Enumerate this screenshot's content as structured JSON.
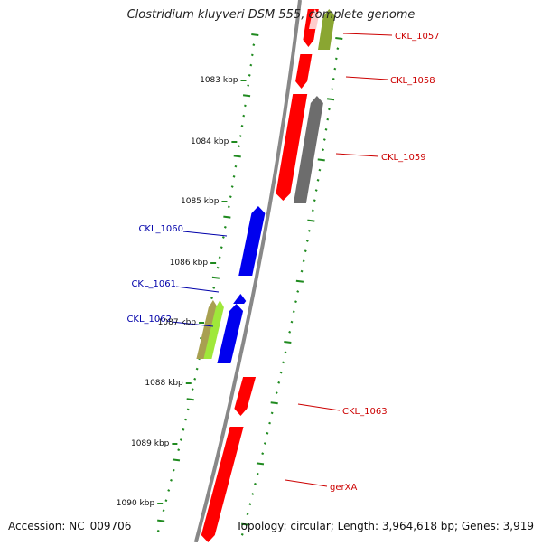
{
  "title": "Clostridium kluyveri DSM 555, complete genome",
  "accession": "Accession: NC_009706",
  "topology": "Topology: circular; Length: 3,964,618 bp; Genes: 3,919",
  "scale_labels": [
    "1083 kbp",
    "1084 kbp",
    "1085 kbp",
    "1086 kbp",
    "1087 kbp",
    "1088 kbp",
    "1089 kbp",
    "1090 kbp"
  ],
  "forward_genes": [
    {
      "label": "CKL_1057",
      "color": "#ff0000"
    },
    {
      "label": "CKL_1058",
      "color": "#ff0000"
    },
    {
      "label": "CKL_1059",
      "color": "#ff0000"
    },
    {
      "label": "CKL_1063",
      "color": "#ff0000"
    },
    {
      "label": "gerXA",
      "color": "#ff0000"
    }
  ],
  "reverse_genes": [
    {
      "label": "CKL_1060",
      "color": "#0000ee"
    },
    {
      "label": "CKL_1061",
      "color": "#0000ee"
    },
    {
      "label": "CKL_1062",
      "color": "#0000ee"
    }
  ],
  "colors": {
    "forward": "#ff0000",
    "reverse": "#0000ee",
    "backbone": "#888888",
    "ticks": "#1f8a1f",
    "forward_label": "#cc0000",
    "reverse_label": "#0000aa"
  }
}
